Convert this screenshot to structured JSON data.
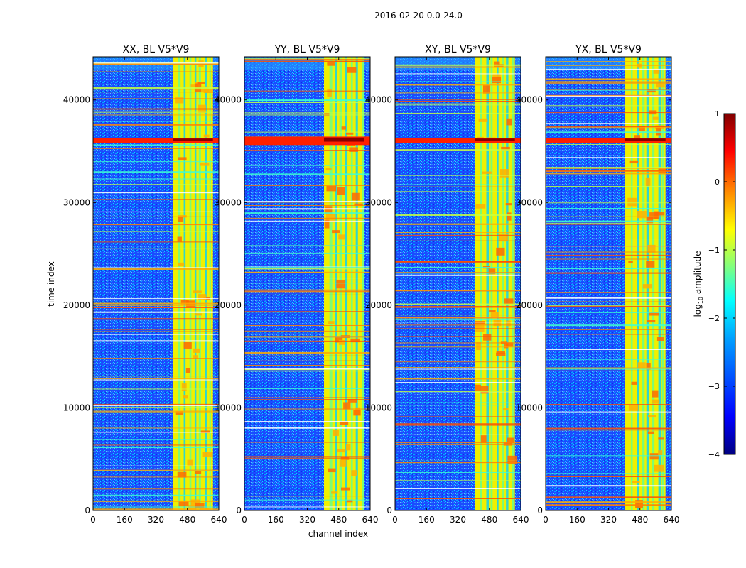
{
  "figure": {
    "suptitle": "2016-02-20 0.0-24.0",
    "xlabel": "channel index",
    "ylabel": "time index"
  },
  "chart_data": [
    {
      "type": "heatmap",
      "title": "XX, BL V5*V9",
      "x_range": [
        0,
        640
      ],
      "y_range": [
        0,
        44200
      ],
      "x_ticks": [
        "0",
        "160",
        "320",
        "480",
        "640"
      ],
      "x_tick_values": [
        0,
        160,
        320,
        480,
        640
      ],
      "y_ticks": [
        "0",
        "10000",
        "20000",
        "30000",
        "40000"
      ],
      "y_tick_values": [
        0,
        10000,
        20000,
        30000,
        40000
      ],
      "bright_band_channels": [
        405,
        610
      ],
      "saturated_time_band": [
        35800,
        36300
      ]
    },
    {
      "type": "heatmap",
      "title": "YY, BL V5*V9",
      "x_range": [
        0,
        640
      ],
      "y_range": [
        0,
        44200
      ],
      "x_ticks": [
        "0",
        "160",
        "320",
        "480",
        "640"
      ],
      "x_tick_values": [
        0,
        160,
        320,
        480,
        640
      ],
      "y_ticks": [
        "0",
        "10000",
        "20000",
        "30000",
        "40000"
      ],
      "y_tick_values": [
        0,
        10000,
        20000,
        30000,
        40000
      ],
      "bright_band_channels": [
        405,
        610
      ],
      "saturated_time_band": [
        35600,
        36400
      ]
    },
    {
      "type": "heatmap",
      "title": "XY, BL V5*V9",
      "x_range": [
        0,
        640
      ],
      "y_range": [
        0,
        44200
      ],
      "x_ticks": [
        "0",
        "160",
        "320",
        "480",
        "640"
      ],
      "x_tick_values": [
        0,
        160,
        320,
        480,
        640
      ],
      "y_ticks": [
        "0",
        "10000",
        "20000",
        "30000",
        "40000"
      ],
      "y_tick_values": [
        0,
        10000,
        20000,
        30000,
        40000
      ],
      "bright_band_channels": [
        405,
        610
      ],
      "saturated_time_band": [
        35800,
        36300
      ]
    },
    {
      "type": "heatmap",
      "title": "YX, BL V5*V9",
      "x_range": [
        0,
        640
      ],
      "y_range": [
        0,
        44200
      ],
      "x_ticks": [
        "0",
        "160",
        "320",
        "480",
        "640"
      ],
      "x_tick_values": [
        0,
        160,
        320,
        480,
        640
      ],
      "y_ticks": [
        "0",
        "10000",
        "20000",
        "30000",
        "40000"
      ],
      "y_tick_values": [
        0,
        10000,
        20000,
        30000,
        40000
      ],
      "bright_band_channels": [
        405,
        610
      ],
      "saturated_time_band": [
        35800,
        36300
      ]
    }
  ],
  "colorbar": {
    "label_prefix": "log",
    "label_subscript": "10",
    "label_suffix": " amplitude",
    "colormap": "jet",
    "range": [
      -4,
      1
    ],
    "ticks": [
      "1",
      "0",
      "−1",
      "−2",
      "−3",
      "−4"
    ],
    "tick_values": [
      1,
      0,
      -1,
      -2,
      -3,
      -4
    ],
    "colors": [
      "#000080",
      "#0000ff",
      "#0080ff",
      "#00ffff",
      "#80ff80",
      "#ffff00",
      "#ff8000",
      "#ff0000",
      "#800000"
    ]
  }
}
